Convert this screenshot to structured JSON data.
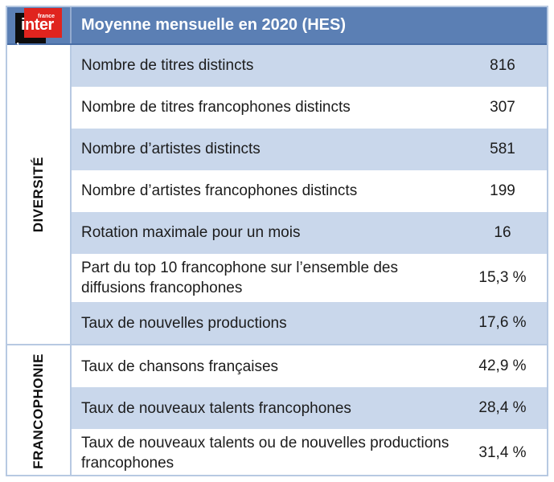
{
  "logo": {
    "brand_top": "france",
    "brand_main": "inter",
    "quote_mark": "‚"
  },
  "header": {
    "title": "Moyenne mensuelle en 2020 (HES)"
  },
  "chart_data": {
    "type": "table",
    "title": "Moyenne mensuelle en 2020 (HES)",
    "legend_position": "none",
    "groups": [
      {
        "group": "DIVERSITÉ",
        "rows": [
          {
            "label": "Nombre de titres distincts",
            "value": "816"
          },
          {
            "label": "Nombre de titres francophones distincts",
            "value": "307"
          },
          {
            "label": "Nombre d’artistes distincts",
            "value": "581"
          },
          {
            "label": "Nombre d’artistes francophones distincts",
            "value": "199"
          },
          {
            "label": "Rotation maximale pour un mois",
            "value": "16"
          },
          {
            "label": "Part du top 10 francophone sur l’ensemble des diffusions francophones",
            "value": "15,3 %"
          },
          {
            "label": "Taux de nouvelles productions",
            "value": "17,6 %"
          }
        ]
      },
      {
        "group": "FRANCOPHONIE",
        "rows": [
          {
            "label": "Taux de chansons françaises",
            "value": "42,9 %"
          },
          {
            "label": "Taux de nouveaux talents francophones",
            "value": "28,4 %"
          },
          {
            "label": "Taux de nouveaux talents ou de nouvelles productions francophones",
            "value": "31,4 %"
          }
        ]
      }
    ]
  },
  "colors": {
    "header_bg": "#5b7fb4",
    "header_edge": "#486da5",
    "row_alt_bg": "#c9d7eb",
    "row_bg": "#ffffff",
    "border": "#b7c9e2",
    "text": "#1c1c1c",
    "logo_red": "#e0241e",
    "logo_black": "#0d0d0d"
  }
}
